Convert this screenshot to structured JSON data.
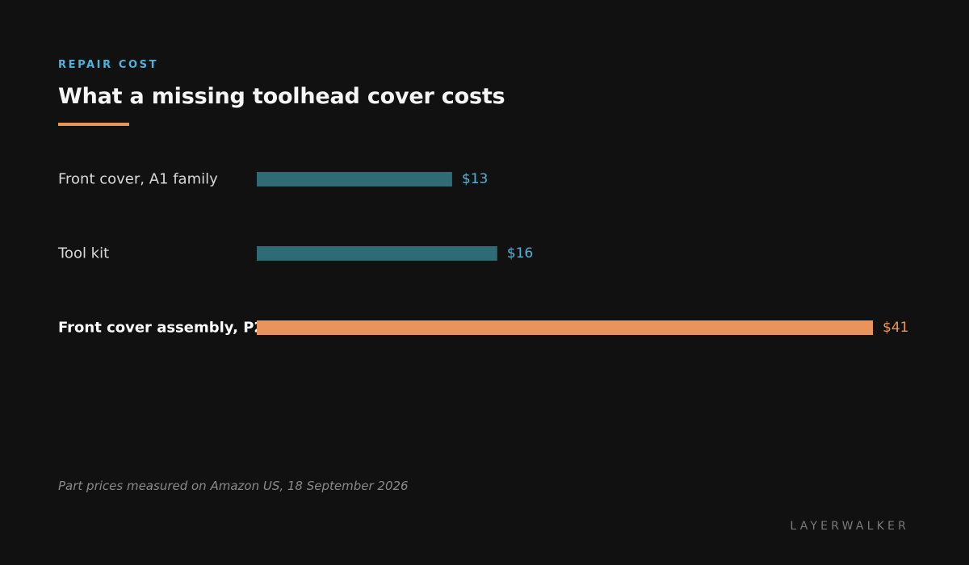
{
  "header": {
    "kicker": "REPAIR COST",
    "title": "What a missing toolhead cover costs"
  },
  "chart_data": {
    "type": "bar",
    "orientation": "horizontal",
    "categories": [
      "Front cover, A1 family",
      "Tool kit",
      "Front cover assembly, P2S"
    ],
    "values": [
      13,
      16,
      41
    ],
    "value_labels": [
      "$13",
      "$16",
      "$41"
    ],
    "highlighted": [
      false,
      false,
      true
    ],
    "unit": "$",
    "xlim": [
      0,
      41
    ],
    "grid": false,
    "title": "What a missing toolhead cover costs"
  },
  "footer": {
    "note": "Part prices measured on Amazon US, 18 September 2026",
    "brand": "LAYERWALKER"
  },
  "colors": {
    "background": "#111111",
    "kicker": "#4fb3d9",
    "bar_default": "#2e6b74",
    "value_default": "#4fb3d9",
    "bar_highlight": "#e8945a",
    "value_highlight": "#e8945a",
    "label_default": "#d8d8d8",
    "label_highlight": "#ffffff",
    "accent_rule": "#e8945a"
  }
}
